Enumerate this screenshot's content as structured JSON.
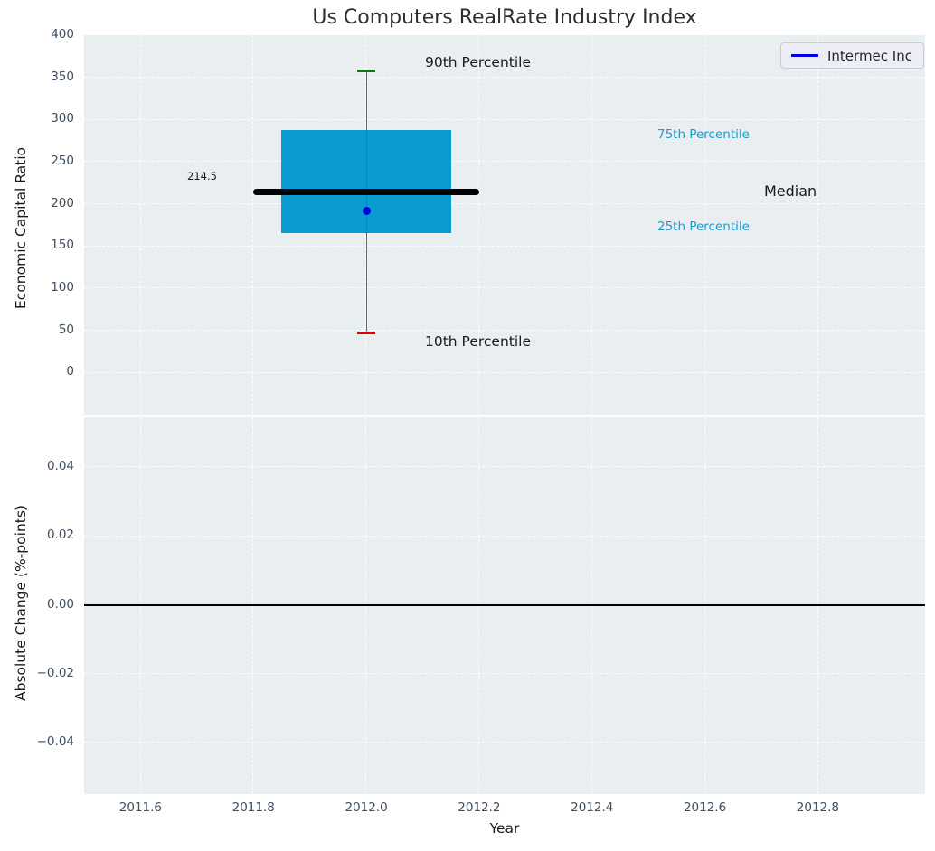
{
  "colors": {
    "box_fill": "#0a9bd3",
    "median_line": "#000000",
    "whisker_line": "#666666",
    "cap_90th": "#008000",
    "cap_10th": "#e60000",
    "company_marker": "#0000e0",
    "legend_line": "#0000e0",
    "percentile_label": "#1e9bcd",
    "axes_bg": "#e9eef0",
    "grid_line": "#ffffff",
    "tick_label": "#3d4e63",
    "text": "#1a1a1a",
    "zero_line": "#000000"
  },
  "chart_data": [
    {
      "type": "boxplot",
      "title": "Us Computers RealRate Industry Index",
      "ylabel": "Economic Capital Ratio",
      "xlabel": "",
      "xlim": [
        2011.5,
        2012.99
      ],
      "ylim": [
        -50,
        400
      ],
      "xtick_values": [
        2011.6,
        2011.8,
        2012.0,
        2012.2,
        2012.4,
        2012.6,
        2012.8
      ],
      "xtick_labels": [
        "2011.6",
        "2011.8",
        "2012.0",
        "2012.2",
        "2012.4",
        "2012.6",
        "2012.8"
      ],
      "ytick_values": [
        0,
        50,
        100,
        150,
        200,
        250,
        300,
        350,
        400
      ],
      "ytick_labels": [
        "0",
        "50",
        "100",
        "150",
        "200",
        "250",
        "300",
        "350",
        "400"
      ],
      "grid": true,
      "legend": {
        "position": "upper right",
        "entries": [
          "Intermec Inc"
        ]
      },
      "box": {
        "x": 2012,
        "p10": 47,
        "p25": 165,
        "median": 214.5,
        "p75": 288,
        "p90": 358,
        "box_halfwidth": 0.15,
        "median_halfwidth": 0.2
      },
      "company_point": {
        "name": "Intermec Inc",
        "x": 2012,
        "value": 192
      },
      "annotations": {
        "p90": "90th Percentile",
        "p10": "10th Percentile",
        "p75": "75th Percentile",
        "p25": "25th Percentile",
        "median": "Median",
        "median_value": "214.5"
      }
    },
    {
      "type": "line",
      "title": "",
      "ylabel": "Absolute Change (%-points)",
      "xlabel": "Year",
      "xlim": [
        2011.5,
        2012.99
      ],
      "ylim": [
        -0.055,
        0.0545
      ],
      "xtick_values": [
        2011.6,
        2011.8,
        2012.0,
        2012.2,
        2012.4,
        2012.6,
        2012.8
      ],
      "xtick_labels": [
        "2011.6",
        "2011.8",
        "2012.0",
        "2012.2",
        "2012.4",
        "2012.6",
        "2012.8"
      ],
      "ytick_values": [
        0.04,
        0.02,
        0,
        -0.02,
        -0.04
      ],
      "ytick_labels": [
        "0.04",
        "0.02",
        "0.00",
        "−0.02",
        "−0.04"
      ],
      "grid": true,
      "zero_line_y": 0,
      "series": []
    }
  ]
}
